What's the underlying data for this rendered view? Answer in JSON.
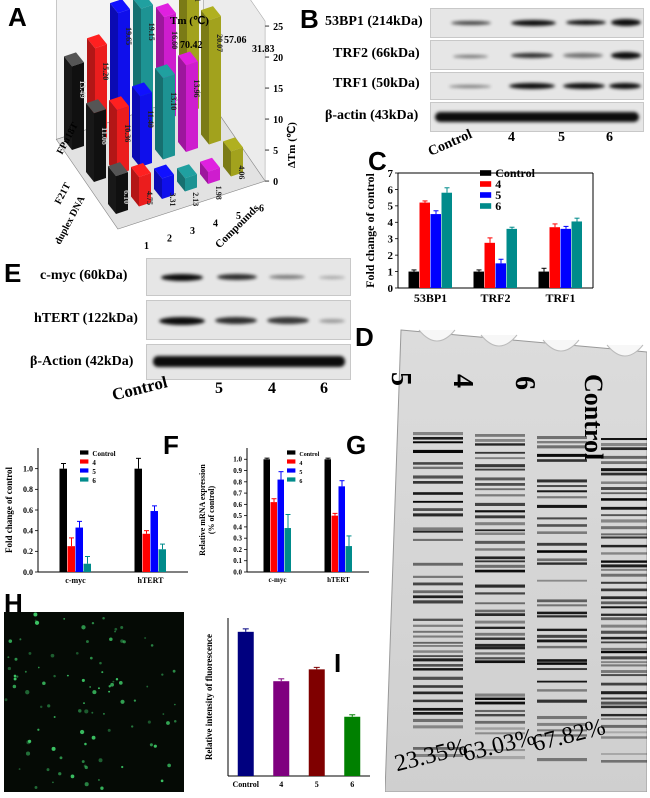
{
  "panels": {
    "A": "A",
    "B": "B",
    "C": "C",
    "D": "D",
    "E": "E",
    "F": "F",
    "G": "G",
    "H": "H",
    "I": "I"
  },
  "panelA": {
    "tm_title": "Tm (℃)",
    "tm_values": [
      "70.42",
      "57.06",
      "31.83"
    ],
    "z_axis_label": "ΔTm (℃)",
    "z_ticks": [
      "0",
      "5",
      "10",
      "15",
      "20",
      "25"
    ],
    "x_axis_label": "Compounds",
    "x_ticks": [
      "1",
      "2",
      "3",
      "4",
      "5",
      "6"
    ],
    "rows": [
      "FPu18T",
      "F21T",
      "duplex DNA"
    ],
    "bars": [
      {
        "row": 0,
        "col": 0,
        "value": "13.49",
        "color": "#000000"
      },
      {
        "row": 0,
        "col": 1,
        "value": "15.20",
        "color": "#ff2020"
      },
      {
        "row": 0,
        "col": 2,
        "value": "19.65",
        "color": "#1010ff"
      },
      {
        "row": 0,
        "col": 3,
        "value": "19.15",
        "color": "#20a0a0"
      },
      {
        "row": 0,
        "col": 4,
        "value": "16.60",
        "color": "#e020e0"
      },
      {
        "row": 0,
        "col": 5,
        "value": "23.01",
        "color": "#b0b020"
      },
      {
        "row": 1,
        "col": 0,
        "value": "11.08",
        "color": "#000000"
      },
      {
        "row": 1,
        "col": 1,
        "value": "10.36",
        "color": "#ff2020"
      },
      {
        "row": 1,
        "col": 2,
        "value": "11.40",
        "color": "#1010ff"
      },
      {
        "row": 1,
        "col": 3,
        "value": "13.10",
        "color": "#20a0a0"
      },
      {
        "row": 1,
        "col": 4,
        "value": "13.96",
        "color": "#e020e0"
      },
      {
        "row": 1,
        "col": 5,
        "value": "20.07",
        "color": "#b0b020"
      },
      {
        "row": 2,
        "col": 0,
        "value": "6.10",
        "color": "#000000"
      },
      {
        "row": 2,
        "col": 1,
        "value": "4.75",
        "color": "#ff2020"
      },
      {
        "row": 2,
        "col": 2,
        "value": "3.31",
        "color": "#1010ff"
      },
      {
        "row": 2,
        "col": 3,
        "value": "2.13",
        "color": "#20a0a0"
      },
      {
        "row": 2,
        "col": 4,
        "value": "1.98",
        "color": "#e020e0"
      },
      {
        "row": 2,
        "col": 5,
        "value": "4.06",
        "color": "#b0b020"
      }
    ]
  },
  "panelB": {
    "labels": [
      "53BP1 (214kDa)",
      "TRF2 (66kDa)",
      "TRF1 (50kDa)",
      "β-actin (43kDa)"
    ],
    "lanes": [
      "Control",
      "4",
      "5",
      "6"
    ]
  },
  "chart_data": [
    {
      "panel": "C",
      "type": "bar",
      "categories": [
        "53BP1",
        "TRF2",
        "TRF1"
      ],
      "ylabel": "Fold change of control",
      "ylim": [
        0,
        7
      ],
      "yticks": [
        "0",
        "1",
        "2",
        "3",
        "4",
        "5",
        "6",
        "7"
      ],
      "series": [
        {
          "name": "Control",
          "color": "#000000",
          "values": [
            1.0,
            1.0,
            1.0
          ],
          "errors": [
            0.1,
            0.1,
            0.2
          ]
        },
        {
          "name": "4",
          "color": "#ff0000",
          "values": [
            5.2,
            2.75,
            3.7
          ],
          "errors": [
            0.1,
            0.3,
            0.2
          ]
        },
        {
          "name": "5",
          "color": "#0000ff",
          "values": [
            4.5,
            1.5,
            3.6
          ],
          "errors": [
            0.2,
            0.25,
            0.15
          ]
        },
        {
          "name": "6",
          "color": "#008b8b",
          "values": [
            5.8,
            3.6,
            4.05
          ],
          "errors": [
            0.3,
            0.1,
            0.2
          ]
        }
      ]
    },
    {
      "panel": "F",
      "type": "bar",
      "categories": [
        "c-myc",
        "hTERT"
      ],
      "ylabel": "Fold change of control",
      "ylim": [
        0,
        1.2
      ],
      "yticks": [
        "0.0",
        "0.2",
        "0.4",
        "0.6",
        "0.8",
        "1.0"
      ],
      "series": [
        {
          "name": "Control",
          "color": "#000000",
          "values": [
            1.0,
            1.0
          ],
          "errors": [
            0.05,
            0.1
          ]
        },
        {
          "name": "4",
          "color": "#ff0000",
          "values": [
            0.25,
            0.37
          ],
          "errors": [
            0.08,
            0.03
          ]
        },
        {
          "name": "5",
          "color": "#0000ff",
          "values": [
            0.43,
            0.59
          ],
          "errors": [
            0.06,
            0.05
          ]
        },
        {
          "name": "6",
          "color": "#008b8b",
          "values": [
            0.08,
            0.22
          ],
          "errors": [
            0.07,
            0.05
          ]
        }
      ]
    },
    {
      "panel": "G",
      "type": "bar",
      "categories": [
        "c-myc",
        "hTERT"
      ],
      "ylabel": "Relative mRNA expression (% of control)",
      "ylabel_lines": [
        "Relative mRNA expression",
        "(% of control)"
      ],
      "ylim": [
        0,
        1.1
      ],
      "yticks": [
        "0.0",
        "0.1",
        "0.2",
        "0.3",
        "0.4",
        "0.5",
        "0.6",
        "0.7",
        "0.8",
        "0.9",
        "1.0"
      ],
      "series": [
        {
          "name": "Control",
          "color": "#000000",
          "values": [
            1.0,
            1.0
          ],
          "errors": [
            0.01,
            0.01
          ]
        },
        {
          "name": "4",
          "color": "#ff0000",
          "values": [
            0.62,
            0.5
          ],
          "errors": [
            0.03,
            0.02
          ]
        },
        {
          "name": "5",
          "color": "#0000ff",
          "values": [
            0.82,
            0.76
          ],
          "errors": [
            0.07,
            0.05
          ]
        },
        {
          "name": "6",
          "color": "#008b8b",
          "values": [
            0.39,
            0.23
          ],
          "errors": [
            0.12,
            0.09
          ]
        }
      ]
    },
    {
      "panel": "I",
      "type": "bar",
      "categories": [
        "Control",
        "4",
        "5",
        "6"
      ],
      "ylabel": "Relative intensity of fluorescence",
      "ylim": [
        0,
        800
      ],
      "colors": [
        "#00007f",
        "#7f007f",
        "#7f0000",
        "#008000"
      ],
      "values": [
        730,
        480,
        540,
        300
      ],
      "errors": [
        15,
        12,
        10,
        10
      ]
    }
  ],
  "panelE": {
    "labels": [
      "c-myc (60kDa)",
      "hTERT (122kDa)",
      "β-Action (42kDa)"
    ],
    "lanes": [
      "Control",
      "5",
      "4",
      "6"
    ]
  },
  "panelD": {
    "lanes": [
      "5",
      "4",
      "6",
      "Control"
    ],
    "percentages": [
      "23.35%",
      "63.03%",
      "67.82%"
    ]
  }
}
